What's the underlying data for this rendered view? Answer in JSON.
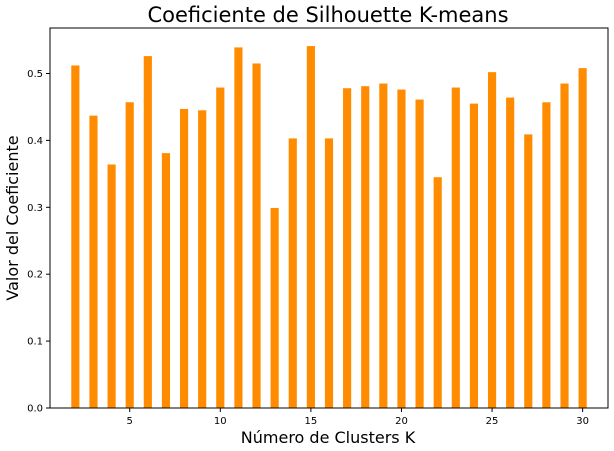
{
  "chart_data": {
    "type": "bar",
    "title": "Coeficiente de Silhouette K-means",
    "xlabel": "Número de Clusters K",
    "ylabel": "Valor del Coeficiente",
    "x": [
      2,
      3,
      4,
      5,
      6,
      7,
      8,
      9,
      10,
      11,
      12,
      13,
      14,
      15,
      16,
      17,
      18,
      19,
      20,
      21,
      22,
      23,
      24,
      25,
      26,
      27,
      28,
      29,
      30
    ],
    "values": [
      0.512,
      0.437,
      0.364,
      0.457,
      0.526,
      0.381,
      0.447,
      0.445,
      0.479,
      0.539,
      0.515,
      0.299,
      0.403,
      0.541,
      0.403,
      0.478,
      0.481,
      0.485,
      0.476,
      0.461,
      0.345,
      0.479,
      0.455,
      0.502,
      0.464,
      0.409,
      0.457,
      0.485,
      0.508
    ],
    "xticks": [
      5,
      10,
      15,
      20,
      25,
      30
    ],
    "yticks": [
      0.0,
      0.1,
      0.2,
      0.3,
      0.4,
      0.5
    ],
    "xlim": [
      0.6,
      31.4
    ],
    "ylim": [
      0,
      0.568
    ],
    "bar_color": "#ff8c00",
    "grid": false,
    "legend": "none"
  }
}
